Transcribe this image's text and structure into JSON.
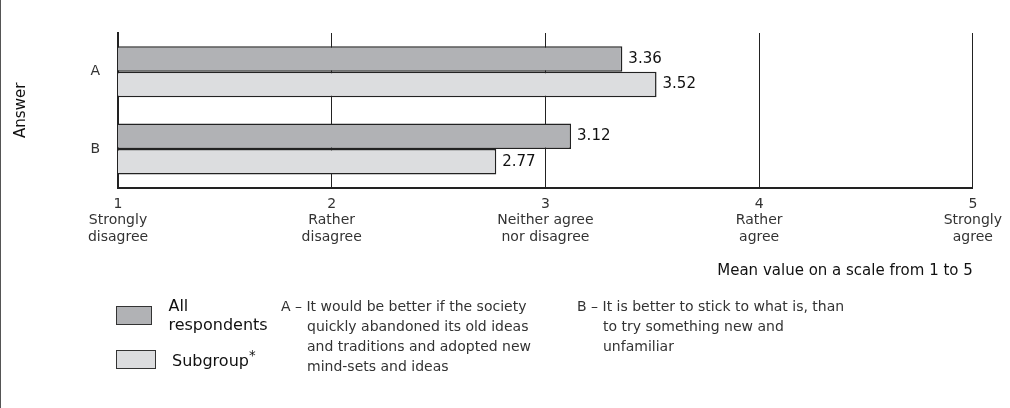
{
  "chart_data": {
    "type": "bar",
    "orientation": "horizontal",
    "ylabel": "Answer",
    "xlabel": "Mean value on a scale from 1 to 5",
    "categories": [
      "A",
      "B"
    ],
    "series": [
      {
        "name": "All respondents",
        "color": "#b1b2b5",
        "values": [
          3.36,
          3.12
        ]
      },
      {
        "name": "Subgroup$^{*}$",
        "color": "#dcdddf",
        "values": [
          3.52,
          2.77
        ]
      }
    ],
    "xlim": [
      1,
      5
    ],
    "xticks": [
      {
        "value": 1,
        "label": "1\nStrongly\ndisagree"
      },
      {
        "value": 2,
        "label": "2\nRather\ndisagree"
      },
      {
        "value": 3,
        "label": "3\nNeither agree\nnor disagree"
      },
      {
        "value": 4,
        "label": "4\nRather\nagree"
      },
      {
        "value": 5,
        "label": "5\nStrongly\nagree"
      }
    ],
    "grid": "x",
    "data_labels": true,
    "legend": "bottom left",
    "annotations": [
      "A – It would be better if the society quickly abandoned its old ideas and traditions and adopted new mind-sets and ideas",
      "B – It is better to stick to what is, than to try something new and unfamiliar"
    ]
  }
}
